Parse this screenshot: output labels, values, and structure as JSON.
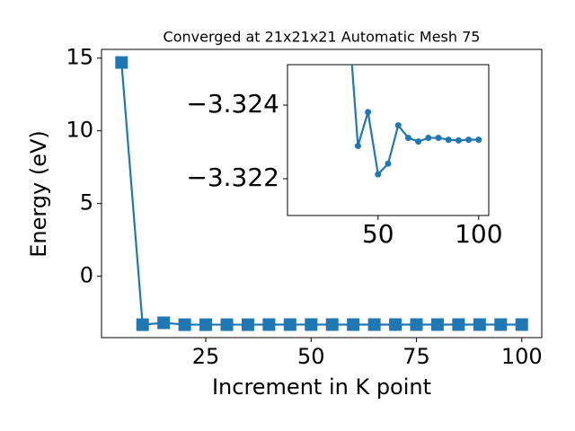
{
  "chart_data": [
    {
      "type": "line",
      "title": "Converged at 21x21x21 Automatic Mesh 75",
      "x_label": "Increment in K point",
      "y_label": "Energy (eV)",
      "series": [
        {
          "color": "#1f77b4",
          "marker": "square",
          "x": [
            5,
            10,
            15,
            20,
            25,
            30,
            35,
            40,
            45,
            50,
            55,
            60,
            65,
            70,
            75,
            80,
            85,
            90,
            95,
            100
          ],
          "values": [
            14.7,
            -3.33,
            -3.2,
            -3.33,
            -3.33,
            -3.33,
            -3.33,
            -3.3229,
            -3.3238,
            -3.3221,
            -3.3224,
            -3.3235,
            -3.3231,
            -3.323,
            -3.3231,
            -3.3231,
            -3.3231,
            -3.323,
            -3.3231,
            -3.3231
          ]
        }
      ],
      "xlim": [
        0.25,
        104.75
      ],
      "ylim": [
        -4.22,
        15.6
      ],
      "xticks": [
        25,
        50,
        75,
        100
      ],
      "yticks": [
        0,
        5,
        10,
        15
      ]
    },
    {
      "type": "line",
      "series": [
        {
          "color": "#1f77b4",
          "marker": "circle",
          "x": [
            35,
            40,
            45,
            50,
            55,
            60,
            65,
            70,
            75,
            80,
            85,
            90,
            95,
            100
          ],
          "values": [
            -3.3266,
            -3.32289,
            -3.32381,
            -3.32212,
            -3.32241,
            -3.32345,
            -3.32311,
            -3.32301,
            -3.32311,
            -3.32311,
            -3.32306,
            -3.32304,
            -3.32306,
            -3.32306
          ]
        }
      ],
      "xlim": [
        5,
        105
      ],
      "ylim": [
        -3.321,
        -3.3251
      ],
      "xticks": [
        50,
        100
      ],
      "yticks": [
        {
          "value": -3.324,
          "label": "−3.324"
        },
        {
          "value": -3.322,
          "label": "−3.322"
        }
      ]
    }
  ]
}
